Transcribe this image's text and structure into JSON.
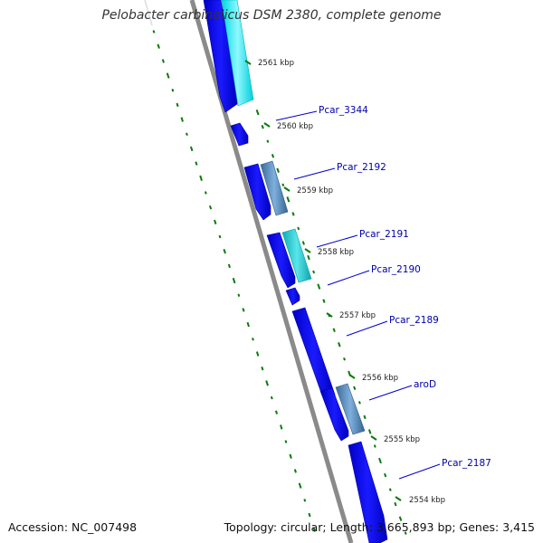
{
  "title": "Pelobacter carbinolicus DSM 2380, complete genome",
  "accession_text": "Accession: NC_007498",
  "topology_text": "Topology: circular; Length: 3,665,893 bp; Genes: 3,415",
  "colors": {
    "backbone": "#808080",
    "gene_blue": "#0000ee",
    "gene_cyan": "#00e6ee",
    "gene_steel": "#4a7fb0",
    "gene_teal": "#12c4c8",
    "ticks": "#0b7a0b",
    "labels": "#0000aa",
    "label_lines": "#0000cc"
  },
  "scale_ticks": [
    {
      "label": "2561 kbp"
    },
    {
      "label": "2560 kbp"
    },
    {
      "label": "2559 kbp"
    },
    {
      "label": "2558 kbp"
    },
    {
      "label": "2557 kbp"
    },
    {
      "label": "2556 kbp"
    },
    {
      "label": "2555 kbp"
    },
    {
      "label": "2554 kbp"
    }
  ],
  "gene_labels": [
    {
      "label": "Pcar_3344"
    },
    {
      "label": "Pcar_2192"
    },
    {
      "label": "Pcar_2191"
    },
    {
      "label": "Pcar_2190"
    },
    {
      "label": "Pcar_2189"
    },
    {
      "label": "aroD"
    },
    {
      "label": "Pcar_2187"
    }
  ]
}
